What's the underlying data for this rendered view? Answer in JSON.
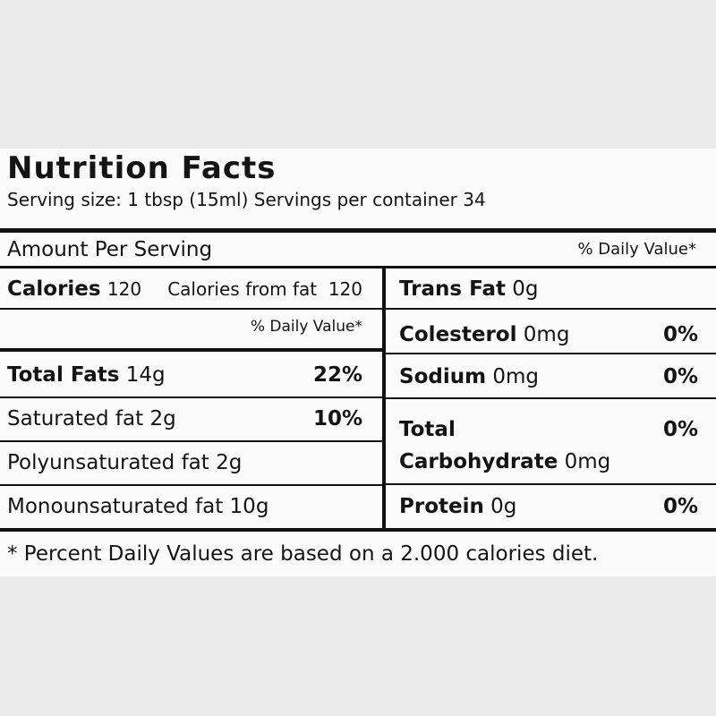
{
  "header": {
    "title": "Nutrition Facts",
    "serving": "Serving size: 1 tbsp (15ml) Servings per container 34"
  },
  "amount_per_serving": "Amount Per Serving",
  "daily_value_header": "% Daily Value*",
  "left": {
    "calories": {
      "label": "Calories",
      "value": "120",
      "from_fat": "Calories from fat  120"
    },
    "daily_value": "% Daily Value*",
    "rows": [
      {
        "label": "Total Fats",
        "amount": "14g",
        "percent": "22%"
      },
      {
        "label": "Saturated fat",
        "amount": "2g",
        "percent": "10%"
      },
      {
        "label": "Polyunsaturated fat",
        "amount": "2g"
      },
      {
        "label": "Monounsaturated fat",
        "amount": "10g"
      }
    ]
  },
  "right": {
    "rows": [
      {
        "label": "Trans Fat",
        "amount": "0g"
      },
      {
        "label": "Colesterol",
        "amount": "0mg",
        "percent": "0%"
      },
      {
        "label": "Sodium",
        "amount": "0mg",
        "percent": "0%"
      },
      {
        "label": "Total Carbohydrate",
        "amount": "0mg",
        "percent": "0%"
      },
      {
        "label": "Protein",
        "amount": "0g",
        "percent": "0%"
      }
    ]
  },
  "footnote": "* Percent Daily Values are based on a 2.000 calories diet."
}
